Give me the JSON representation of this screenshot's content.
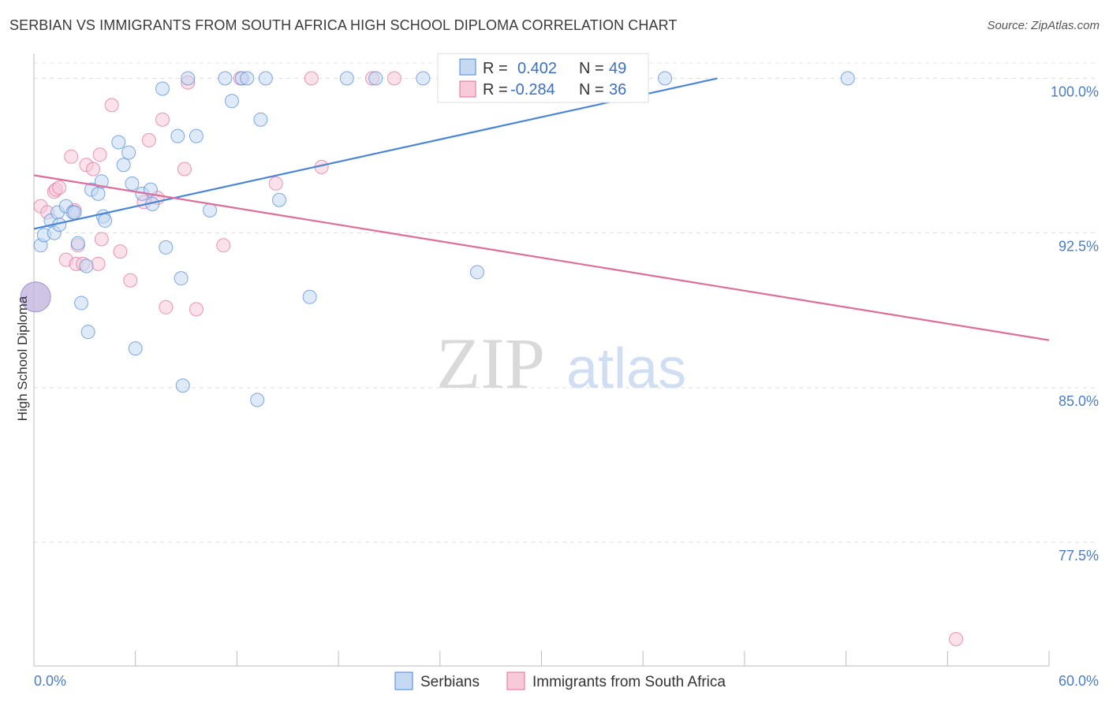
{
  "title": "SERBIAN VS IMMIGRANTS FROM SOUTH AFRICA HIGH SCHOOL DIPLOMA CORRELATION CHART",
  "source": "Source: ZipAtlas.com",
  "watermark": {
    "zip": "ZIP",
    "atlas": "atlas"
  },
  "colors": {
    "blue": "#4a86d8",
    "blue_fill": "#c5d9f3",
    "pink": "#e06c98",
    "pink_fill": "#f7c9d9",
    "axis_text": "#4a7cc9",
    "grid": "#dddddd"
  },
  "legend": {
    "r_label": "R =",
    "n_label": "N =",
    "rows": [
      {
        "series": "Serbians",
        "r": "0.402",
        "n": "49"
      },
      {
        "series": "Immigrants from South Africa",
        "r": "-0.284",
        "n": "36"
      }
    ]
  },
  "chart_data": {
    "type": "scatter",
    "title": "SERBIAN VS IMMIGRANTS FROM SOUTH AFRICA HIGH SCHOOL DIPLOMA CORRELATION CHART",
    "xlabel": "",
    "ylabel": "High School Diploma",
    "xlim": [
      0,
      60
    ],
    "ylim": [
      71.5,
      101.2
    ],
    "x_tick_labels": [
      "0.0%",
      "60.0%"
    ],
    "y_ticks": [
      100,
      92.5,
      85,
      77.5
    ],
    "y_tick_labels": [
      "100.0%",
      "92.5%",
      "85.0%",
      "77.5%"
    ],
    "grid": true,
    "series": [
      {
        "name": "Serbians",
        "color": "#4a86d8",
        "trend": {
          "x0": 0,
          "y0": 92.7,
          "x1": 40.4,
          "y1": 100.0
        },
        "points": [
          [
            0.4,
            91.9
          ],
          [
            0.6,
            92.4
          ],
          [
            1.0,
            93.1
          ],
          [
            1.2,
            92.5
          ],
          [
            1.4,
            93.5
          ],
          [
            1.5,
            92.9
          ],
          [
            1.9,
            93.8
          ],
          [
            2.3,
            93.5
          ],
          [
            2.4,
            93.5
          ],
          [
            2.6,
            92.0
          ],
          [
            2.8,
            89.1
          ],
          [
            3.2,
            87.7
          ],
          [
            3.1,
            90.9
          ],
          [
            3.4,
            94.6
          ],
          [
            3.8,
            94.4
          ],
          [
            4.0,
            95.0
          ],
          [
            4.1,
            93.3
          ],
          [
            4.2,
            93.1
          ],
          [
            5.0,
            96.9
          ],
          [
            5.3,
            95.8
          ],
          [
            5.6,
            96.4
          ],
          [
            5.8,
            94.9
          ],
          [
            6.0,
            86.9
          ],
          [
            6.4,
            94.4
          ],
          [
            6.9,
            94.6
          ],
          [
            7.0,
            93.9
          ],
          [
            7.6,
            99.5
          ],
          [
            7.8,
            91.8
          ],
          [
            8.5,
            97.2
          ],
          [
            8.7,
            90.3
          ],
          [
            8.8,
            85.1
          ],
          [
            9.1,
            100.0
          ],
          [
            9.6,
            97.2
          ],
          [
            10.4,
            93.6
          ],
          [
            11.3,
            100.0
          ],
          [
            11.7,
            98.9
          ],
          [
            12.3,
            100.0
          ],
          [
            12.6,
            100.0
          ],
          [
            13.2,
            84.4
          ],
          [
            13.4,
            98.0
          ],
          [
            13.7,
            100.0
          ],
          [
            14.5,
            94.1
          ],
          [
            16.3,
            89.4
          ],
          [
            18.5,
            100.0
          ],
          [
            20.2,
            100.0
          ],
          [
            23.0,
            100.0
          ],
          [
            26.2,
            90.6
          ],
          [
            37.3,
            100.0
          ],
          [
            48.1,
            100.0
          ]
        ]
      },
      {
        "name": "Immigrants from South Africa",
        "color": "#e06c98",
        "trend": {
          "x0": 0,
          "y0": 95.3,
          "x1": 60,
          "y1": 87.3
        },
        "points": [
          [
            0.4,
            93.8
          ],
          [
            0.8,
            93.5
          ],
          [
            1.2,
            94.5
          ],
          [
            1.3,
            94.6
          ],
          [
            1.5,
            94.7
          ],
          [
            1.9,
            91.2
          ],
          [
            2.2,
            96.2
          ],
          [
            2.4,
            93.6
          ],
          [
            2.5,
            91.0
          ],
          [
            2.6,
            91.9
          ],
          [
            2.9,
            91.0
          ],
          [
            3.1,
            95.8
          ],
          [
            3.5,
            95.6
          ],
          [
            3.8,
            91.0
          ],
          [
            3.9,
            96.3
          ],
          [
            4.0,
            92.2
          ],
          [
            4.6,
            98.7
          ],
          [
            5.1,
            91.6
          ],
          [
            5.7,
            90.2
          ],
          [
            6.5,
            94.0
          ],
          [
            6.8,
            97.0
          ],
          [
            7.3,
            94.2
          ],
          [
            7.6,
            98.0
          ],
          [
            7.8,
            88.9
          ],
          [
            8.9,
            95.6
          ],
          [
            9.1,
            99.8
          ],
          [
            9.6,
            88.8
          ],
          [
            11.2,
            91.9
          ],
          [
            12.2,
            100.0
          ],
          [
            14.3,
            94.9
          ],
          [
            16.4,
            100.0
          ],
          [
            17.0,
            95.7
          ],
          [
            20.0,
            100.0
          ],
          [
            21.3,
            100.0
          ],
          [
            33.1,
            100.0
          ],
          [
            54.5,
            72.8
          ]
        ]
      }
    ],
    "large_points": [
      {
        "series": "Immigrants from South Africa",
        "x": 0.1,
        "y": 89.4
      },
      {
        "series": "Serbians",
        "x": 0.1,
        "y": 89.4
      }
    ]
  }
}
